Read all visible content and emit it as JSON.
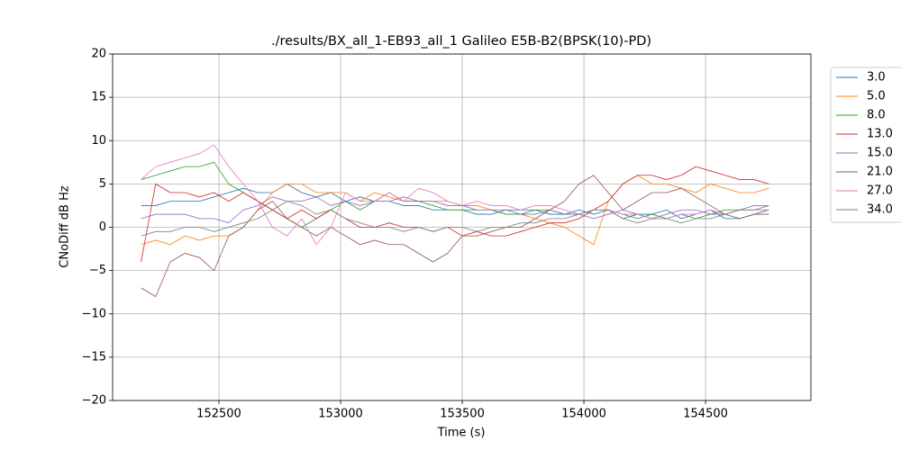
{
  "chart_data": {
    "type": "line",
    "title": "./results/BX_all_1-EB93_all_1 Galileo E5B-B2(BPSK(10)-PD)",
    "xlabel": "Time (s)",
    "ylabel": "CNoDiff dB Hz",
    "x": [
      152180,
      152240,
      152300,
      152360,
      152420,
      152480,
      152540,
      152600,
      152660,
      152720,
      152780,
      152840,
      152900,
      152960,
      153020,
      153080,
      153140,
      153200,
      153260,
      153320,
      153380,
      153440,
      153500,
      153560,
      153620,
      153680,
      153740,
      153800,
      153860,
      153920,
      153980,
      154040,
      154100,
      154160,
      154220,
      154280,
      154340,
      154400,
      154460,
      154520,
      154580,
      154640,
      154700,
      154760
    ],
    "xlim": [
      152063,
      154933
    ],
    "xticks": [
      152500,
      153000,
      153500,
      154000,
      154500
    ],
    "ylim": [
      -20,
      20
    ],
    "yticks": [
      {
        "value": -20,
        "label": "−20"
      },
      {
        "value": -15,
        "label": "−15"
      },
      {
        "value": -10,
        "label": "−10"
      },
      {
        "value": -5,
        "label": "−5"
      },
      0,
      5,
      10,
      15,
      20
    ],
    "grid": true,
    "legend": "outside-upper-right",
    "series": [
      {
        "name": "3.0",
        "color": "#1f77b4",
        "values": [
          2.5,
          2.5,
          3,
          3,
          3,
          3.5,
          4,
          4.5,
          4,
          4,
          5,
          4,
          3.5,
          4,
          3,
          3.5,
          3,
          3,
          2.5,
          2.5,
          2,
          2,
          2,
          1.5,
          1.5,
          2,
          2,
          2,
          1.5,
          1.5,
          2,
          1.5,
          2,
          1,
          1.5,
          1.5,
          2,
          1,
          1.5,
          2,
          1,
          1,
          1.5,
          2
        ]
      },
      {
        "name": "5.0",
        "color": "#ff7f0e",
        "values": [
          -2,
          -1.5,
          -2,
          -1,
          -1.5,
          -1,
          -1,
          0,
          2,
          4,
          5,
          5,
          4,
          4,
          4,
          3,
          4,
          3.5,
          3,
          3,
          3,
          3,
          2.5,
          2.5,
          2,
          1.5,
          1.5,
          1,
          0.5,
          0,
          -1,
          -2,
          3,
          5,
          6,
          5,
          5,
          4.5,
          4,
          5,
          4.5,
          4,
          4,
          4.5
        ]
      },
      {
        "name": "8.0",
        "color": "#2ca02c",
        "values": [
          5.5,
          6,
          6.5,
          7,
          7,
          7.5,
          5,
          4,
          3,
          2,
          1,
          0,
          1,
          2,
          3,
          2,
          3,
          4,
          3,
          3,
          2.5,
          2,
          2,
          2,
          2,
          1.5,
          1.5,
          2,
          2,
          1.5,
          1.5,
          2,
          2,
          1.5,
          1,
          1.5,
          1,
          1.5,
          1,
          1.5,
          2,
          2,
          2,
          2
        ]
      },
      {
        "name": "13.0",
        "color": "#d62728",
        "values": [
          -4,
          5,
          4,
          4,
          3.5,
          4,
          3,
          4,
          3,
          2,
          1,
          2,
          1,
          2,
          1,
          0,
          0,
          0.5,
          0,
          0,
          -0.5,
          0,
          -1,
          -0.5,
          -1,
          -1,
          -0.5,
          0,
          0.5,
          0.5,
          1,
          2,
          3,
          5,
          6,
          6,
          5.5,
          6,
          7,
          6.5,
          6,
          5.5,
          5.5,
          5
        ]
      },
      {
        "name": "15.0",
        "color": "#9467bd",
        "values": [
          1,
          1.5,
          1.5,
          1.5,
          1,
          1,
          0.5,
          2,
          2.5,
          3.5,
          3,
          3,
          3.5,
          2.5,
          3,
          2.5,
          3,
          3,
          3.5,
          3,
          3,
          2.5,
          2.5,
          2,
          2,
          2,
          1.5,
          1.5,
          2,
          1.5,
          1.5,
          1,
          1.5,
          2,
          1.5,
          1,
          1.5,
          2,
          2,
          1.5,
          1.5,
          2,
          2.5,
          2.5
        ]
      },
      {
        "name": "21.0",
        "color": "#8c564b",
        "values": [
          -7,
          -8,
          -4,
          -3,
          -3.5,
          -5,
          -1,
          0,
          2,
          3,
          1,
          0,
          -1,
          0,
          -1,
          -2,
          -1.5,
          -2,
          -2,
          -3,
          -4,
          -3,
          -1,
          -1,
          -0.5,
          0,
          0,
          1,
          2,
          3,
          5,
          6,
          4,
          2,
          3,
          4,
          4,
          4.5,
          3.5,
          2.5,
          1.5,
          1,
          1.5,
          1.5
        ]
      },
      {
        "name": "27.0",
        "color": "#e377c2",
        "values": [
          5.5,
          7,
          7.5,
          8,
          8.5,
          9.5,
          7,
          5,
          3,
          0,
          -1,
          1,
          -2,
          0,
          4,
          3,
          3,
          4,
          3,
          4.5,
          4,
          3,
          2.5,
          3,
          2.5,
          2.5,
          2,
          2.5,
          2.5,
          2,
          1.5,
          2,
          2,
          1.5,
          1.5,
          1,
          1,
          1.5,
          1.5,
          2,
          1.5,
          2,
          2,
          2
        ]
      },
      {
        "name": "34.0",
        "color": "#7f7f7f",
        "values": [
          -1,
          -0.5,
          -0.5,
          0,
          0,
          -0.5,
          0,
          0.5,
          1,
          2,
          3,
          2.5,
          1.5,
          2,
          1,
          0.5,
          0,
          0,
          -0.5,
          0,
          -0.5,
          0,
          0,
          -0.5,
          0,
          0,
          0.5,
          0.5,
          1,
          1,
          1.5,
          2,
          2,
          1,
          0.5,
          1,
          1,
          0.5,
          1,
          1,
          1.5,
          2,
          2,
          2.5
        ]
      }
    ]
  }
}
